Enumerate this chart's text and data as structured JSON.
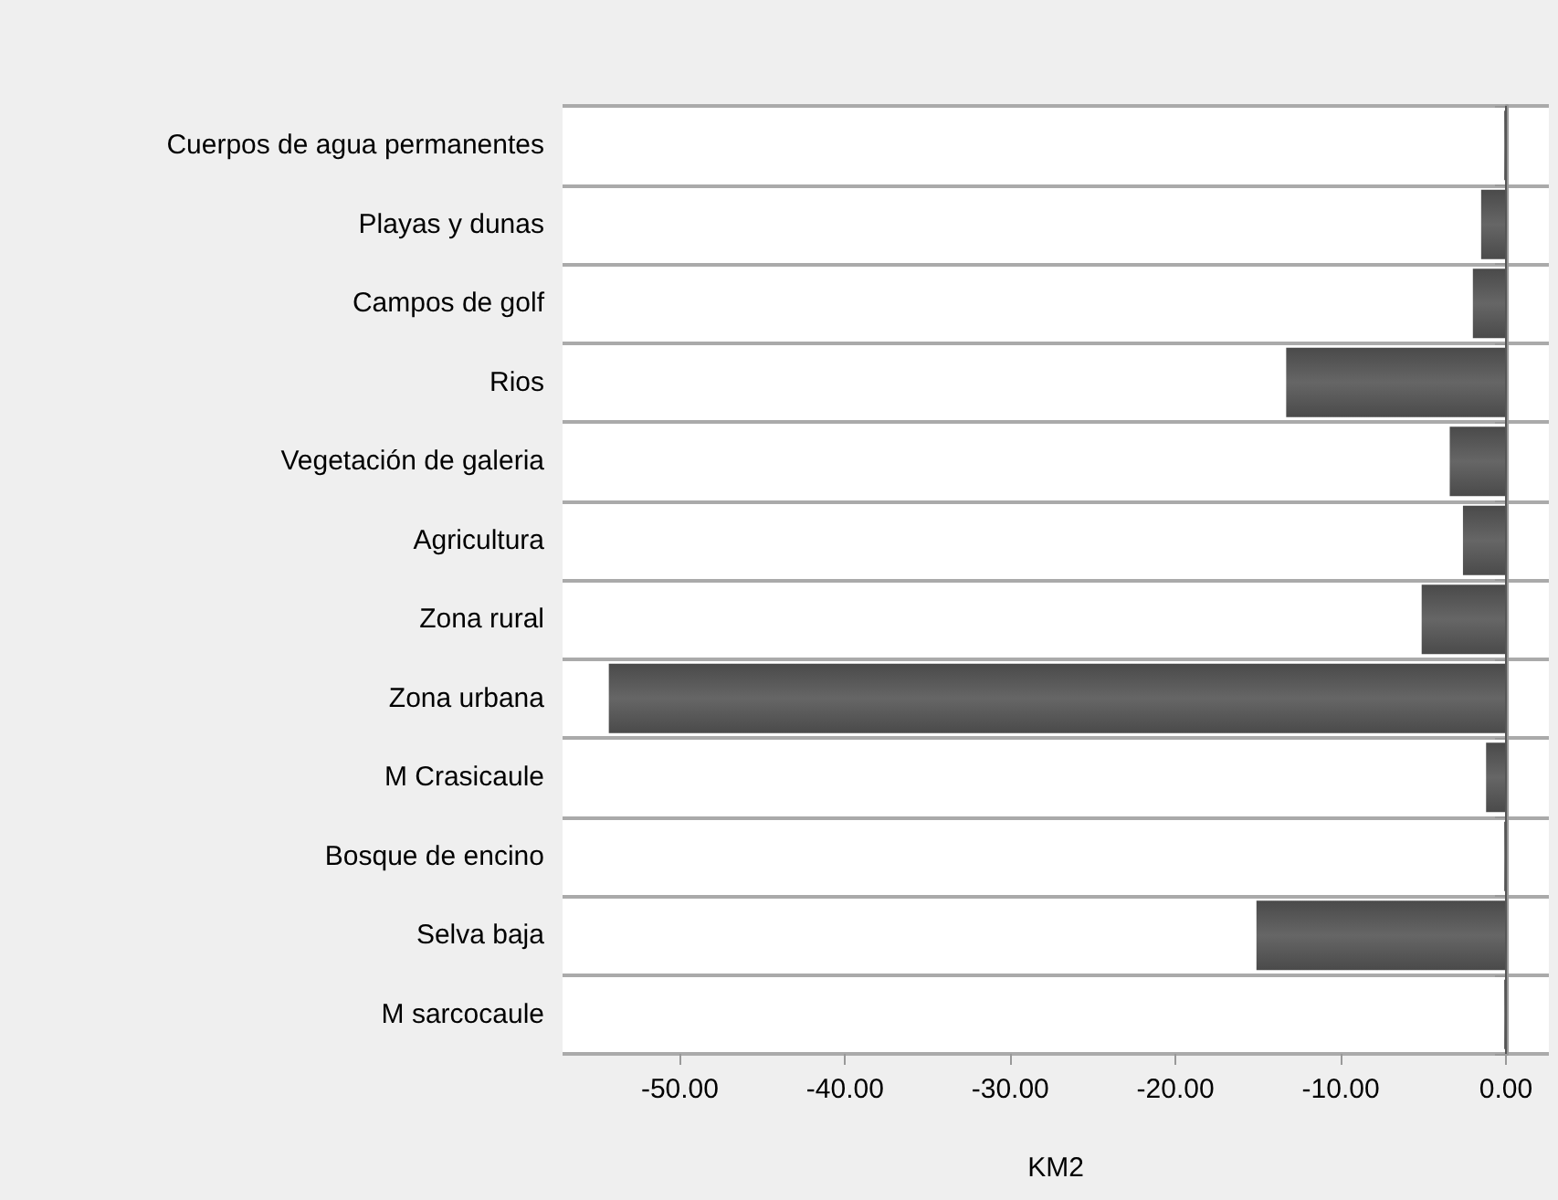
{
  "chart_data": {
    "type": "bar",
    "orientation": "horizontal",
    "xlabel": "KM2",
    "categories": [
      "Cuerpos de agua permanentes",
      "Playas y dunas",
      "Campos de golf",
      "Rios",
      "Vegetación de galeria",
      "Agricultura",
      "Zona rural",
      "Zona urbana",
      "M Crasicaule",
      "Bosque de encino",
      "Selva baja",
      "M sarcocaule"
    ],
    "values": [
      -0.1,
      -1.5,
      -2.0,
      -13.3,
      -3.4,
      -2.6,
      -5.1,
      -54.3,
      -1.2,
      -0.1,
      -15.1,
      -0.1
    ],
    "color": "#666666",
    "xlim": [
      -57.1,
      2.6
    ],
    "xticks": [
      {
        "value": -50,
        "label": "-50.00"
      },
      {
        "value": -40,
        "label": "-40.00"
      },
      {
        "value": -30,
        "label": "-30.00"
      },
      {
        "value": -20,
        "label": "-20.00"
      },
      {
        "value": -10,
        "label": "-10.00"
      },
      {
        "value": 0,
        "label": "0.00"
      }
    ],
    "grid": "y"
  }
}
